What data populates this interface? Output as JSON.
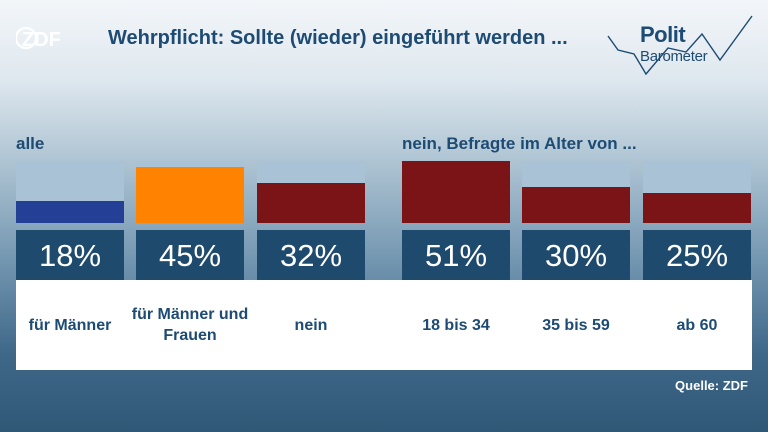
{
  "branding": {
    "zdf_logo_text": "ZDF",
    "polit_text": "Polit",
    "barometer_text": "Barometer",
    "brand_color": "#1d4b73"
  },
  "title": "Wehrpflicht: Sollte (wieder) eingeführt werden ...",
  "source": "Quelle: ZDF",
  "chart_data": [
    {
      "type": "bar",
      "group_label": "alle",
      "categories": [
        "für Männer",
        "für Männer und Frauen",
        "nein"
      ],
      "values": [
        18,
        45,
        32
      ],
      "value_labels": [
        "18%",
        "45%",
        "32%"
      ],
      "unit": "%",
      "colors": [
        "#233f96",
        "#ff8200",
        "#7a1416"
      ],
      "ylim": [
        0,
        50
      ]
    },
    {
      "type": "bar",
      "group_label": "nein, Befragte im Alter von ...",
      "categories": [
        "18 bis 34",
        "35 bis 59",
        "ab 60"
      ],
      "values": [
        51,
        30,
        25
      ],
      "value_labels": [
        "51%",
        "30%",
        "25%"
      ],
      "unit": "%",
      "colors": [
        "#7a1416",
        "#7a1416",
        "#7a1416"
      ],
      "ylim": [
        0,
        51
      ]
    }
  ]
}
